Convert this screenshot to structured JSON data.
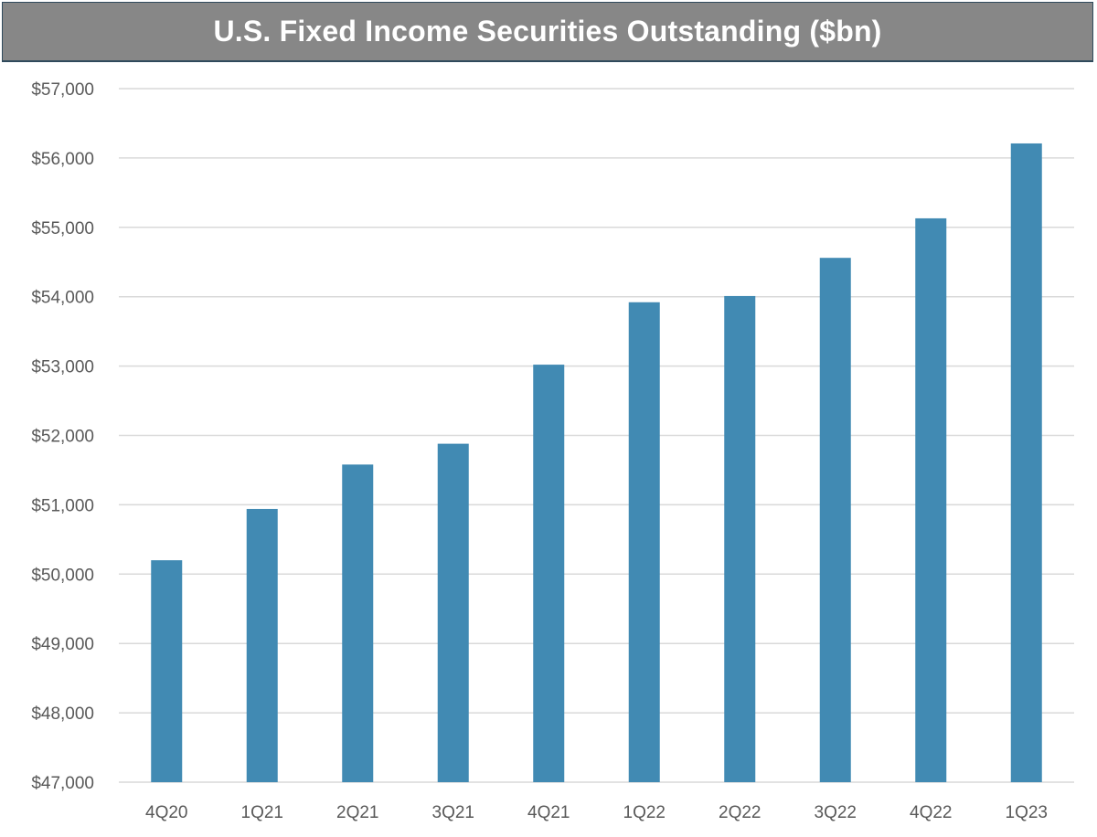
{
  "chart_data": {
    "type": "bar",
    "title": "U.S. Fixed Income Securities Outstanding ($bn)",
    "categories": [
      "4Q20",
      "1Q21",
      "2Q21",
      "3Q21",
      "4Q21",
      "1Q22",
      "2Q22",
      "3Q22",
      "4Q22",
      "1Q23"
    ],
    "values": [
      50200,
      50940,
      51580,
      51880,
      53020,
      53920,
      54010,
      54560,
      55130,
      56210
    ],
    "ylim": [
      47000,
      57000
    ],
    "yticks": [
      47000,
      48000,
      49000,
      50000,
      51000,
      52000,
      53000,
      54000,
      55000,
      56000,
      57000
    ],
    "ytick_labels": [
      "$47,000",
      "$48,000",
      "$49,000",
      "$50,000",
      "$51,000",
      "$52,000",
      "$53,000",
      "$54,000",
      "$55,000",
      "$56,000",
      "$57,000"
    ],
    "xlabel": "",
    "ylabel": "",
    "grid": true,
    "legend": "none",
    "bar_color": "#418ab3",
    "grid_color": "#d9d9d9",
    "title_bg_color": "#878787"
  }
}
